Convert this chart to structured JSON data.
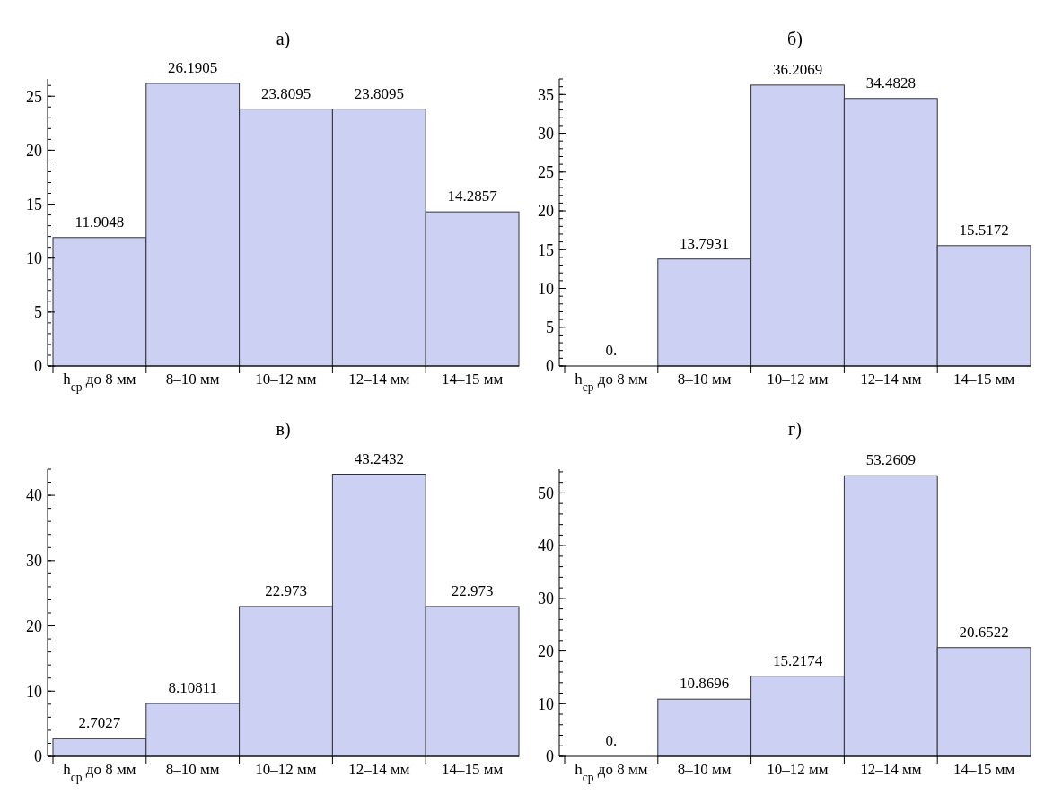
{
  "chart_data": [
    {
      "type": "bar",
      "title": "а)",
      "categories": [
        "h$_{ср}$ до 8 мм",
        "8–10 мм",
        "10–12 мм",
        "12–14 мм",
        "14–15 мм"
      ],
      "values": [
        11.9048,
        26.1905,
        23.8095,
        23.8095,
        14.2857
      ],
      "value_labels": [
        "11.9048",
        "26.1905",
        "23.8095",
        "23.8095",
        "14.2857"
      ],
      "color": "#ccd1f4",
      "ylim": [
        0,
        26.6
      ],
      "yticks": [
        0,
        5,
        10,
        15,
        20,
        25
      ],
      "grid": false
    },
    {
      "type": "bar",
      "title": "б)",
      "categories": [
        "h$_{ср}$ до 8 мм",
        "8–10 мм",
        "10–12 мм",
        "12–14 мм",
        "14–15 мм"
      ],
      "values": [
        0,
        13.7931,
        36.2069,
        34.4828,
        15.5172
      ],
      "value_labels": [
        "0.",
        "13.7931",
        "36.2069",
        "34.4828",
        "15.5172"
      ],
      "color": "#ccd1f4",
      "ylim": [
        0,
        37
      ],
      "yticks": [
        0,
        5,
        10,
        15,
        20,
        25,
        30,
        35
      ],
      "grid": false
    },
    {
      "type": "bar",
      "title": "в)",
      "categories": [
        "h$_{ср}$ до 8 мм",
        "8–10 мм",
        "10–12 мм",
        "12–14 мм",
        "14–15 мм"
      ],
      "values": [
        2.7027,
        8.10811,
        22.973,
        43.2432,
        22.973
      ],
      "value_labels": [
        "2.7027",
        "8.10811",
        "22.973",
        "43.2432",
        "22.973"
      ],
      "color": "#ccd1f4",
      "ylim": [
        0,
        44
      ],
      "yticks": [
        0,
        10,
        20,
        30,
        40
      ],
      "grid": false
    },
    {
      "type": "bar",
      "title": "г)",
      "categories": [
        "h$_{ср}$ до 8 мм",
        "8–10 мм",
        "10–12 мм",
        "12–14 мм",
        "14–15 мм"
      ],
      "values": [
        0,
        10.8696,
        15.2174,
        53.2609,
        20.6522
      ],
      "value_labels": [
        "0.",
        "10.8696",
        "15.2174",
        "53.2609",
        "20.6522"
      ],
      "color": "#ccd1f4",
      "ylim": [
        0,
        54.5
      ],
      "yticks": [
        0,
        10,
        20,
        30,
        40,
        50
      ],
      "grid": false
    }
  ]
}
